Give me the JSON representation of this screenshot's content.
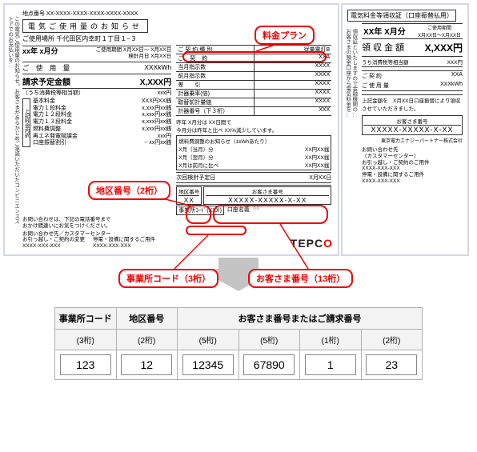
{
  "left_bill": {
    "point_number_label": "地点番号",
    "point_number": "XX-XXXX-XXXX-XXXX-XXXX-XXXX",
    "title": "電気ご使用量のお知らせ",
    "vtext": "この電気ご使用量のお知らせ。お客さまがあらかじめご承諾いただいたコンビニエンスストアでのお支払いを…",
    "address_label": "ご使用場所",
    "address": "千代田区内幸町１丁目１−３",
    "month": "xx年 x月分",
    "period_labels": {
      "use": "ご使用期間",
      "read": "検針月日"
    },
    "period_values": {
      "use": "X月XX日〜 X月XX日",
      "read": "X月XX日"
    },
    "usage_label": "ご 使 用 量",
    "usage_value": "XXXkWh",
    "bill_label": "請求予定金額",
    "bill_value": "X,XXX円",
    "tax_note": "（うち消費税等相当額）",
    "tax_value": "xxx円",
    "breakdown_title": "上記料金内訳",
    "breakdown": [
      {
        "label": "基本料金",
        "value": "XXX円XX銭"
      },
      {
        "label": "電力１段料金",
        "value": "x,xxx円xx銭"
      },
      {
        "label": "電力１２段料金",
        "value": "x,xxx円xx銭"
      },
      {
        "label": "電力１３段料金",
        "value": "x,xxx円xx銭"
      },
      {
        "label": "燃料費調整",
        "value": "x,xxx円xx銭"
      },
      {
        "label": "再エネ発電賦課金",
        "value": " xxx円"
      },
      {
        "label": "口座振替割引",
        "value": "− xx円xx銭"
      }
    ],
    "contract": {
      "type_label": "ご契約種別",
      "type_value": "従量電灯B",
      "capacity_label": "ご 契 約",
      "capacity_value": "XXA",
      "this_month_reading": "当月指示数",
      "last_month_reading": "前月指示数",
      "diff": "差　　引",
      "multiplier": "計器乗率(倍)",
      "instrument": "取替前計量値",
      "meter_no": "計器番号（下３桁）",
      "vals": [
        "XXXX",
        "XXXX",
        "XXXX",
        "XXXX",
        "XXXX",
        "XXX"
      ]
    },
    "comparison_note1": "昨年 X月分は XX日間で",
    "comparison_note2": "今月分は昨年と比べ XX%減少しています。",
    "fuel_title": "燃料費調整のお知らせ（1kWhあたり）",
    "fuel_rows": [
      {
        "l": "X月（当月）分",
        "r": "XX円XX銭"
      },
      {
        "l": "X月（翌月）分",
        "r": "XX円XX銭"
      },
      {
        "l": "X月は前月に比べ",
        "r": "XX円XX銭"
      }
    ],
    "next_read_label": "次回検針予定日",
    "next_read_value": "X月XX日",
    "district_label": "地区番号",
    "district_value": "XX",
    "customer_label": "お客さま番号",
    "customer_value": "XXXXX-XXXXX-X-XX",
    "office_label": "事業所ｺｰﾄﾞ(XXX)",
    "account_holder": "口座名義",
    "account_holder_val": "○○",
    "inquiry": "お問い合わせは、下記の電話番号まで\nおかけ間違いにお気をつけください。",
    "inquiry2_title": "お問い合わせ先／カスタマーセンター",
    "inquiry2_a": "お引っ越し・ご契約の変更\nXXXX-XXX-XXX",
    "inquiry2_b": "停電・設備に関するご用件\nXXXX-XXX-XXX",
    "tepco": "TEPC",
    "tepco_o": "O"
  },
  "right_bill": {
    "title": "電気料金等領収証（口座振替払用）",
    "vtext1": "お客さまの預金口座から電気料金を…",
    "vtext2": "領収証といたしますので金融機関の…",
    "month": "XX年 X月分",
    "period_label": "ご使用期間",
    "period": "X月XX日〜X月XX日",
    "amount_label": "領収金額",
    "amount_value": "X,XXX円",
    "tax_label": "うち消費税等相当額",
    "tax_value": "XXX円",
    "contract_label": "ご 契 約",
    "contract_value": "XXA",
    "usage_label": "ご 使 用 量",
    "usage_value": "XXXkWh",
    "note": "上記金額を　X月XX日口座振替により領収させていただきました。",
    "cust_label": "お客さま番号",
    "cust_value": "XXXXX-XXXXX-X-XX",
    "company": "東京電力エナジーパートナー株式会社",
    "inquiry_title": "お問い合わせ先\n（カスタマーセンター）",
    "inquiry_a": "お引っ越し・ご契約のご用件\nXXXX-XXX-XXX",
    "inquiry_b": "停電・設備に関するご用件\nXXXX-XXX-XXX"
  },
  "callouts": {
    "plan": "料金プラン",
    "district": "地区番号（2桁）",
    "office": "事業所コード（3桁）",
    "customer": "お客さま番号（13桁）"
  },
  "input_table": {
    "headers": {
      "office": "事業所コード",
      "district": "地区番号",
      "customer": "お客さま番号またはご請求番号"
    },
    "subheaders": [
      "(3桁)",
      "(2桁)",
      "(5桁)",
      "(5桁)",
      "(1桁)",
      "(2桁)"
    ],
    "values": [
      "123",
      "12",
      "12345",
      "67890",
      "1",
      "23"
    ]
  },
  "colors": {
    "accent": "#e00000",
    "border": "#d4d6ea"
  }
}
